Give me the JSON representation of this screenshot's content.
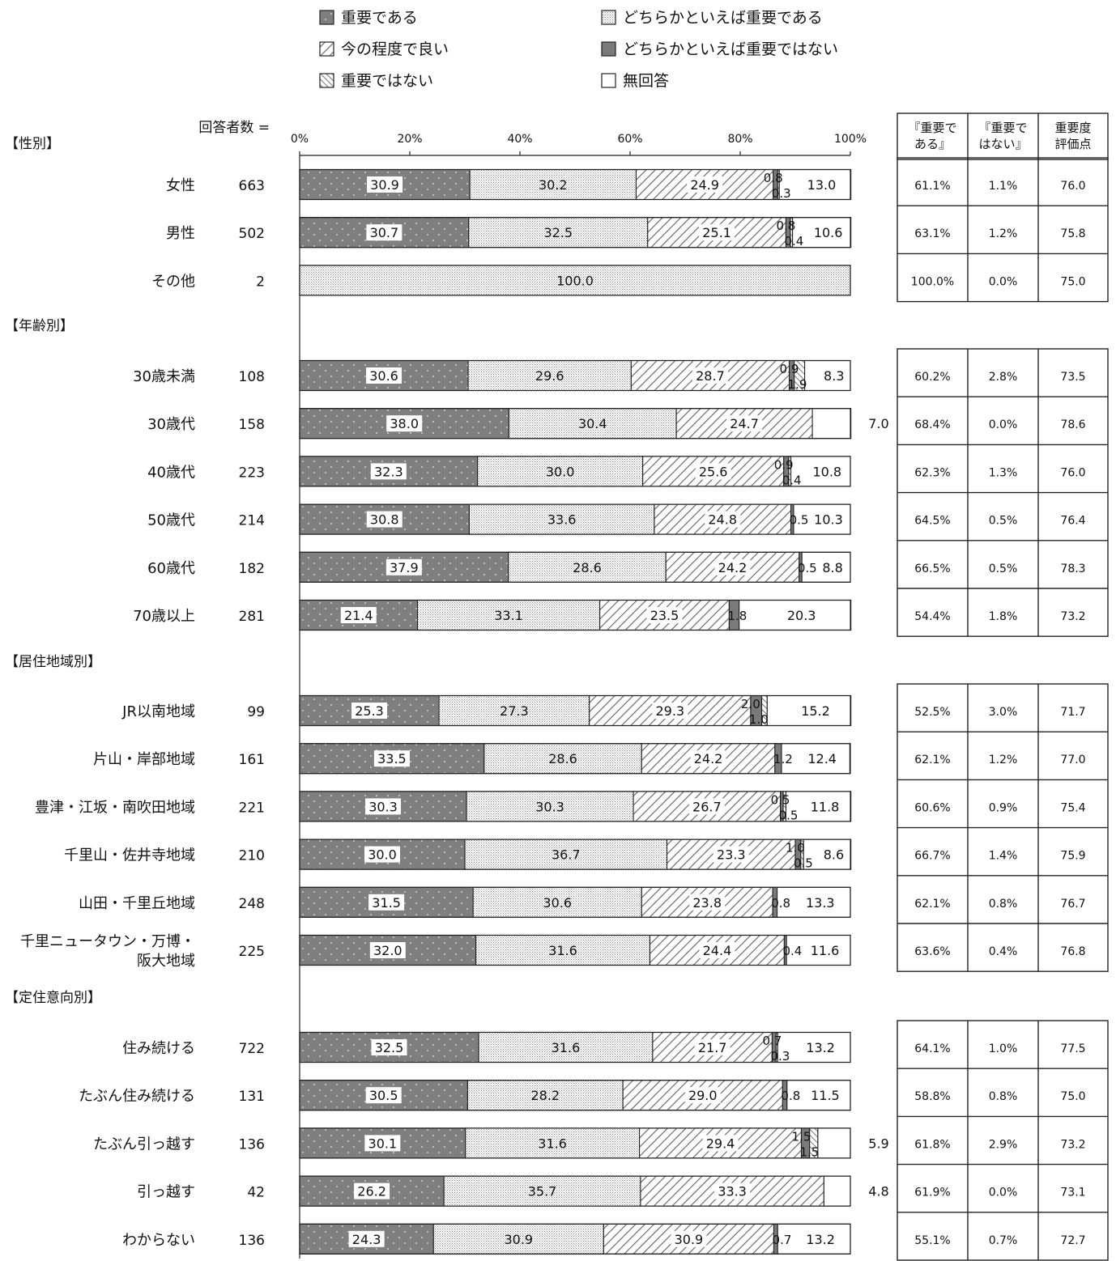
{
  "legend": [
    {
      "label": "重要である",
      "pattern": "dots"
    },
    {
      "label": "どちらかといえば重要である",
      "pattern": "fine"
    },
    {
      "label": "今の程度で良い",
      "pattern": "hatch"
    },
    {
      "label": "どちらかといえば重要ではない",
      "pattern": "darkgray"
    },
    {
      "label": "重要ではない",
      "pattern": "diag"
    },
    {
      "label": "無回答",
      "pattern": "white"
    }
  ],
  "respondents_label": "回答者数 =",
  "table_headers": [
    "『重要である』",
    "『重要ではない』",
    "重要度評価点"
  ],
  "chart_data": {
    "type": "bar",
    "orientation": "horizontal-stacked-100",
    "x_ticks": [
      "0%",
      "20%",
      "40%",
      "60%",
      "80%",
      "100%"
    ],
    "xlim": [
      0,
      100
    ],
    "series": [
      "重要である",
      "どちらかといえば重要である",
      "今の程度で良い",
      "どちらかといえば重要ではない",
      "重要ではない",
      "無回答"
    ],
    "groups": [
      {
        "name": "【性別】",
        "rows": [
          {
            "label": "女性",
            "n": "663",
            "values": [
              30.9,
              30.2,
              24.9,
              0.8,
              0.3,
              13.0
            ],
            "table": [
              "61.1%",
              "1.1%",
              "76.0"
            ]
          },
          {
            "label": "男性",
            "n": "502",
            "values": [
              30.7,
              32.5,
              25.1,
              0.8,
              0.4,
              10.6
            ],
            "table": [
              "63.1%",
              "1.2%",
              "75.8"
            ]
          },
          {
            "label": "その他",
            "n": "2",
            "values": [
              0,
              100.0,
              0,
              0,
              0,
              0
            ],
            "table": [
              "100.0%",
              "0.0%",
              "75.0"
            ]
          }
        ]
      },
      {
        "name": "【年齢別】",
        "rows": [
          {
            "label": "30歳未満",
            "n": "108",
            "values": [
              30.6,
              29.6,
              28.7,
              0.9,
              1.9,
              8.3
            ],
            "table": [
              "60.2%",
              "2.8%",
              "73.5"
            ]
          },
          {
            "label": "30歳代",
            "n": "158",
            "values": [
              38.0,
              30.4,
              24.7,
              0,
              0,
              7.0
            ],
            "table": [
              "68.4%",
              "0.0%",
              "78.6"
            ]
          },
          {
            "label": "40歳代",
            "n": "223",
            "values": [
              32.3,
              30.0,
              25.6,
              0.9,
              0.4,
              10.8
            ],
            "table": [
              "62.3%",
              "1.3%",
              "76.0"
            ]
          },
          {
            "label": "50歳代",
            "n": "214",
            "values": [
              30.8,
              33.6,
              24.8,
              0.5,
              0,
              10.3
            ],
            "table": [
              "64.5%",
              "0.5%",
              "76.4"
            ]
          },
          {
            "label": "60歳代",
            "n": "182",
            "values": [
              37.9,
              28.6,
              24.2,
              0.5,
              0,
              8.8
            ],
            "table": [
              "66.5%",
              "0.5%",
              "78.3"
            ]
          },
          {
            "label": "70歳以上",
            "n": "281",
            "values": [
              21.4,
              33.1,
              23.5,
              1.8,
              0,
              20.3
            ],
            "table": [
              "54.4%",
              "1.8%",
              "73.2"
            ]
          }
        ]
      },
      {
        "name": "【居住地域別】",
        "rows": [
          {
            "label": "JR以南地域",
            "n": "99",
            "values": [
              25.3,
              27.3,
              29.3,
              2.0,
              1.0,
              15.2
            ],
            "table": [
              "52.5%",
              "3.0%",
              "71.7"
            ]
          },
          {
            "label": "片山・岸部地域",
            "n": "161",
            "values": [
              33.5,
              28.6,
              24.2,
              1.2,
              0,
              12.4
            ],
            "table": [
              "62.1%",
              "1.2%",
              "77.0"
            ]
          },
          {
            "label": "豊津・江坂・南吹田地域",
            "n": "221",
            "values": [
              30.3,
              30.3,
              26.7,
              0.5,
              0.5,
              11.8
            ],
            "table": [
              "60.6%",
              "0.9%",
              "75.4"
            ]
          },
          {
            "label": "千里山・佐井寺地域",
            "n": "210",
            "values": [
              30.0,
              36.7,
              23.3,
              1.0,
              0.5,
              8.6
            ],
            "table": [
              "66.7%",
              "1.4%",
              "75.9"
            ]
          },
          {
            "label": "山田・千里丘地域",
            "n": "248",
            "values": [
              31.5,
              30.6,
              23.8,
              0.8,
              0,
              13.3
            ],
            "table": [
              "62.1%",
              "0.8%",
              "76.7"
            ]
          },
          {
            "label": "千里ニュータウン・万博・阪大地域",
            "label_lines": [
              "千里ニュータウン・万博・",
              "阪大地域"
            ],
            "n": "225",
            "values": [
              32.0,
              31.6,
              24.4,
              0.4,
              0,
              11.6
            ],
            "table": [
              "63.6%",
              "0.4%",
              "76.8"
            ]
          }
        ]
      },
      {
        "name": "【定住意向別】",
        "rows": [
          {
            "label": "住み続ける",
            "n": "722",
            "values": [
              32.5,
              31.6,
              21.7,
              0.7,
              0.3,
              13.2
            ],
            "table": [
              "64.1%",
              "1.0%",
              "77.5"
            ]
          },
          {
            "label": "たぶん住み続ける",
            "n": "131",
            "values": [
              30.5,
              28.2,
              29.0,
              0.8,
              0,
              11.5
            ],
            "table": [
              "58.8%",
              "0.8%",
              "75.0"
            ]
          },
          {
            "label": "たぶん引っ越す",
            "n": "136",
            "values": [
              30.1,
              31.6,
              29.4,
              1.5,
              1.5,
              5.9
            ],
            "table": [
              "61.8%",
              "2.9%",
              "73.2"
            ]
          },
          {
            "label": "引っ越す",
            "n": "42",
            "values": [
              26.2,
              35.7,
              33.3,
              0,
              0,
              4.8
            ],
            "table": [
              "61.9%",
              "0.0%",
              "73.1"
            ]
          },
          {
            "label": "わからない",
            "n": "136",
            "values": [
              24.3,
              30.9,
              30.9,
              0.7,
              0,
              13.2
            ],
            "table": [
              "55.1%",
              "0.7%",
              "72.7"
            ]
          }
        ]
      }
    ]
  }
}
